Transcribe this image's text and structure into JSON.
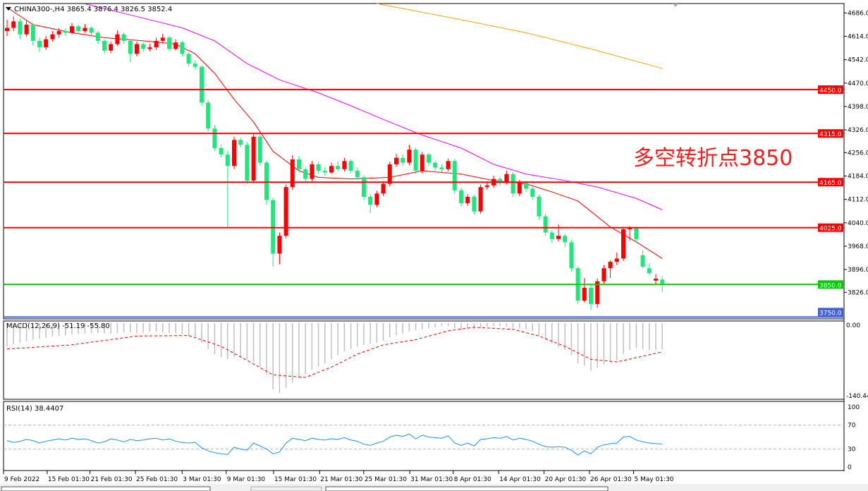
{
  "header": {
    "symbol_info": "CHINA300-,H4  3865.4 3876.4 3826.5 3852.4"
  },
  "annotation": "多空转折点3850",
  "colors": {
    "up_candle": "#ff0000",
    "down_candle": "#1ee87c",
    "ma_fast": "#ff0000",
    "ma_mid": "#ff00ff",
    "ma_slow": "#ffa500",
    "resistance": "#ff0000",
    "pivot": "#00cc00",
    "support": "#4060e0",
    "macd_hist": "#c0c0c0",
    "macd_signal": "#ff0000",
    "rsi": "#1e90ff"
  },
  "chart_data": [
    {
      "type": "candlestick",
      "ylim": [
        3750,
        4686
      ],
      "y_ticks": [
        "4686.0",
        "4614.0",
        "4542.0",
        "4470.0",
        "4398.0",
        "4326.0",
        "4256.0",
        "4184.0",
        "4112.0",
        "4040.0",
        "3968.0",
        "3896.0",
        "3826.0"
      ],
      "y_tick_values": [
        4686,
        4614,
        4542,
        4470,
        4398,
        4326,
        4256,
        4184,
        4112,
        4040,
        3968,
        3896,
        3826
      ],
      "x_ticks": [
        {
          "bar": 0,
          "label": "9 Feb 2022"
        },
        {
          "bar": 6.4,
          "label": "15 Feb 01:30"
        },
        {
          "bar": 13,
          "label": "21 Feb 01:30"
        },
        {
          "bar": 20,
          "label": "25 Feb 01:30"
        },
        {
          "bar": 27.2,
          "label": "3 Mar 01:30"
        },
        {
          "bar": 34,
          "label": "9 Mar 01:30"
        },
        {
          "bar": 41.3,
          "label": "15 Mar 01:30"
        },
        {
          "bar": 48.4,
          "label": "21 Mar 01:30"
        },
        {
          "bar": 55.2,
          "label": "25 Mar 01:30"
        },
        {
          "bar": 62.3,
          "label": "31 Mar 01:30"
        },
        {
          "bar": 69,
          "label": "8 Apr 01:30"
        },
        {
          "bar": 76,
          "label": "14 Apr 01:30"
        },
        {
          "bar": 83,
          "label": "20 Apr 01:30"
        },
        {
          "bar": 90,
          "label": "26 Apr 01:30"
        },
        {
          "bar": 96.8,
          "label": "5 May 01:30"
        }
      ],
      "candles_ohlc": [
        [
          4630,
          4665,
          4615,
          4640
        ],
        [
          4640,
          4675,
          4630,
          4660
        ],
        [
          4660,
          4668,
          4605,
          4620
        ],
        [
          4620,
          4662,
          4612,
          4650
        ],
        [
          4650,
          4655,
          4585,
          4600
        ],
        [
          4600,
          4610,
          4565,
          4580
        ],
        [
          4580,
          4615,
          4572,
          4605
        ],
        [
          4605,
          4630,
          4598,
          4620
        ],
        [
          4620,
          4640,
          4610,
          4630
        ],
        [
          4630,
          4638,
          4615,
          4625
        ],
        [
          4625,
          4655,
          4620,
          4645
        ],
        [
          4645,
          4650,
          4622,
          4630
        ],
        [
          4630,
          4652,
          4625,
          4640
        ],
        [
          4640,
          4645,
          4615,
          4625
        ],
        [
          4625,
          4630,
          4590,
          4600
        ],
        [
          4600,
          4605,
          4560,
          4570
        ],
        [
          4570,
          4598,
          4562,
          4590
        ],
        [
          4590,
          4632,
          4585,
          4620
        ],
        [
          4620,
          4626,
          4590,
          4600
        ],
        [
          4600,
          4605,
          4535,
          4560
        ],
        [
          4560,
          4598,
          4552,
          4590
        ],
        [
          4590,
          4596,
          4565,
          4575
        ],
        [
          4575,
          4590,
          4568,
          4580
        ],
        [
          4580,
          4610,
          4572,
          4600
        ],
        [
          4600,
          4622,
          4595,
          4610
        ],
        [
          4610,
          4615,
          4568,
          4575
        ],
        [
          4575,
          4605,
          4570,
          4595
        ],
        [
          4595,
          4600,
          4552,
          4560
        ],
        [
          4560,
          4565,
          4522,
          4530
        ],
        [
          4530,
          4540,
          4512,
          4520
        ],
        [
          4520,
          4525,
          4400,
          4410
        ],
        [
          4410,
          4418,
          4320,
          4330
        ],
        [
          4330,
          4340,
          4262,
          4270
        ],
        [
          4270,
          4282,
          4240,
          4250
        ],
        [
          4250,
          4262,
          4025,
          4215
        ],
        [
          4215,
          4305,
          4205,
          4295
        ],
        [
          4295,
          4302,
          4272,
          4280
        ],
        [
          4280,
          4288,
          4160,
          4170
        ],
        [
          4170,
          4315,
          4162,
          4305
        ],
        [
          4305,
          4312,
          4215,
          4225
        ],
        [
          4225,
          4232,
          4095,
          4110
        ],
        [
          4110,
          4118,
          3905,
          3945
        ],
        [
          3945,
          4010,
          3912,
          4000
        ],
        [
          4000,
          4158,
          3992,
          4150
        ],
        [
          4150,
          4248,
          4142,
          4235
        ],
        [
          4235,
          4245,
          4195,
          4205
        ],
        [
          4205,
          4212,
          4165,
          4175
        ],
        [
          4175,
          4230,
          4168,
          4220
        ],
        [
          4220,
          4228,
          4190,
          4200
        ],
        [
          4200,
          4212,
          4185,
          4195
        ],
        [
          4195,
          4225,
          4190,
          4215
        ],
        [
          4215,
          4228,
          4198,
          4205
        ],
        [
          4205,
          4240,
          4198,
          4230
        ],
        [
          4230,
          4235,
          4192,
          4200
        ],
        [
          4200,
          4210,
          4172,
          4180
        ],
        [
          4180,
          4186,
          4110,
          4120
        ],
        [
          4120,
          4128,
          4070,
          4095
        ],
        [
          4095,
          4138,
          4088,
          4130
        ],
        [
          4130,
          4168,
          4122,
          4160
        ],
        [
          4160,
          4228,
          4152,
          4220
        ],
        [
          4220,
          4252,
          4212,
          4240
        ],
        [
          4240,
          4250,
          4215,
          4225
        ],
        [
          4225,
          4280,
          4218,
          4265
        ],
        [
          4265,
          4272,
          4190,
          4200
        ],
        [
          4200,
          4258,
          4192,
          4250
        ],
        [
          4250,
          4256,
          4215,
          4225
        ],
        [
          4225,
          4232,
          4200,
          4210
        ],
        [
          4210,
          4220,
          4195,
          4205
        ],
        [
          4205,
          4238,
          4198,
          4230
        ],
        [
          4230,
          4236,
          4130,
          4140
        ],
        [
          4140,
          4148,
          4090,
          4100
        ],
        [
          4100,
          4128,
          4092,
          4120
        ],
        [
          4120,
          4126,
          4065,
          4075
        ],
        [
          4075,
          4158,
          4068,
          4150
        ],
        [
          4150,
          4165,
          4142,
          4155
        ],
        [
          4155,
          4185,
          4148,
          4175
        ],
        [
          4175,
          4182,
          4155,
          4165
        ],
        [
          4165,
          4200,
          4158,
          4190
        ],
        [
          4190,
          4196,
          4120,
          4130
        ],
        [
          4130,
          4172,
          4122,
          4165
        ],
        [
          4165,
          4170,
          4135,
          4145
        ],
        [
          4145,
          4152,
          4110,
          4120
        ],
        [
          4120,
          4126,
          4050,
          4060
        ],
        [
          4060,
          4068,
          4000,
          4010
        ],
        [
          4010,
          4018,
          3978,
          3990
        ],
        [
          3990,
          4035,
          3982,
          4000
        ],
        [
          4000,
          4006,
          3965,
          3980
        ],
        [
          3980,
          3988,
          3890,
          3900
        ],
        [
          3900,
          3906,
          3790,
          3800
        ],
        [
          3800,
          3870,
          3795,
          3840
        ],
        [
          3840,
          3848,
          3772,
          3790
        ],
        [
          3790,
          3868,
          3778,
          3860
        ],
        [
          3860,
          3910,
          3852,
          3900
        ],
        [
          3900,
          3925,
          3870,
          3920
        ],
        [
          3920,
          3948,
          3910,
          3930
        ],
        [
          3930,
          4028,
          3922,
          4020
        ],
        [
          4020,
          4030,
          3985,
          4025
        ],
        [
          4025,
          4028,
          3985,
          3990
        ],
        [
          3940,
          3955,
          3900,
          3905
        ],
        [
          3900,
          3915,
          3880,
          3885
        ],
        [
          3862,
          3882,
          3850,
          3868
        ],
        [
          3865.4,
          3876.4,
          3826.5,
          3852.4
        ]
      ],
      "moving_averages": [
        {
          "role": "fast",
          "points": [
            [
              0,
              4703
            ],
            [
              4,
              4650
            ],
            [
              10,
              4625
            ],
            [
              15,
              4610
            ],
            [
              21,
              4600
            ],
            [
              26,
              4590
            ],
            [
              29,
              4560
            ],
            [
              32,
              4500
            ],
            [
              35,
              4420
            ],
            [
              38,
              4350
            ],
            [
              41,
              4260
            ],
            [
              45,
              4200
            ],
            [
              48,
              4180
            ],
            [
              53,
              4175
            ],
            [
              59,
              4180
            ],
            [
              64,
              4200
            ],
            [
              70,
              4190
            ],
            [
              75,
              4170
            ],
            [
              80,
              4160
            ],
            [
              84,
              4135
            ],
            [
              88,
              4107
            ],
            [
              93,
              4027
            ],
            [
              97,
              3981
            ],
            [
              101,
              3930
            ]
          ]
        },
        {
          "role": "mid",
          "points": [
            [
              12,
              4714
            ],
            [
              21,
              4670
            ],
            [
              27,
              4640
            ],
            [
              32,
              4600
            ],
            [
              37,
              4530
            ],
            [
              42,
              4480
            ],
            [
              48,
              4440
            ],
            [
              53,
              4400
            ],
            [
              59,
              4350
            ],
            [
              64,
              4310
            ],
            [
              70,
              4270
            ],
            [
              75,
              4220
            ],
            [
              80,
              4190
            ],
            [
              86,
              4170
            ],
            [
              91,
              4150
            ],
            [
              97,
              4115
            ],
            [
              101,
              4080
            ]
          ]
        },
        {
          "role": "slow",
          "points": [
            [
              57,
              4715
            ],
            [
              70,
              4665
            ],
            [
              80,
              4625
            ],
            [
              91,
              4570
            ],
            [
              101,
              4515
            ]
          ]
        }
      ],
      "horizontal_lines": [
        {
          "value": 4450,
          "label": "4450.0",
          "kind": "resistance"
        },
        {
          "value": 4315,
          "label": "4315.0",
          "kind": "resistance"
        },
        {
          "value": 4165,
          "label": "4165.0",
          "kind": "resistance"
        },
        {
          "value": 4025,
          "label": "4025.0",
          "kind": "resistance"
        },
        {
          "value": 3850,
          "label": "3850.0",
          "kind": "pivot"
        },
        {
          "value": 3750,
          "label": "3750.0",
          "kind": "support"
        }
      ]
    },
    {
      "type": "bar",
      "title": "MACD(12,26,9) -51.19 -55.80",
      "ylim": [
        -140.44,
        0
      ],
      "y_ticks": [
        "0.00",
        "-140.44"
      ],
      "histogram": [
        -45,
        -40,
        -38,
        -35,
        -32,
        -30,
        -28,
        -26,
        -25,
        -24,
        -22,
        -21,
        -20,
        -20,
        -19,
        -20,
        -20,
        -19,
        -18,
        -18,
        -19,
        -18,
        -17,
        -17,
        -18,
        -19,
        -20,
        -22,
        -25,
        -28,
        -38,
        -50,
        -60,
        -66,
        -70,
        -66,
        -65,
        -70,
        -75,
        -85,
        -100,
        -128,
        -135,
        -125,
        -115,
        -105,
        -98,
        -90,
        -84,
        -78,
        -70,
        -62,
        -55,
        -50,
        -45,
        -42,
        -40,
        -38,
        -34,
        -28,
        -24,
        -20,
        -16,
        -14,
        -12,
        -10,
        -8,
        -6,
        -6,
        -10,
        -14,
        -12,
        -12,
        -8,
        -7,
        -6,
        -6,
        -7,
        -9,
        -10,
        -12,
        -16,
        -24,
        -32,
        -40,
        -46,
        -52,
        -62,
        -78,
        -82,
        -92,
        -86,
        -80,
        -76,
        -72,
        -60,
        -52,
        -48,
        -50,
        -52,
        -51,
        -51.19
      ],
      "signal": [
        [
          0,
          -50
        ],
        [
          10,
          -42
        ],
        [
          20,
          -25
        ],
        [
          28,
          -24
        ],
        [
          33,
          -45
        ],
        [
          37,
          -72
        ],
        [
          41,
          -100
        ],
        [
          46,
          -105
        ],
        [
          50,
          -85
        ],
        [
          54,
          -60
        ],
        [
          58,
          -42
        ],
        [
          63,
          -32
        ],
        [
          68,
          -15
        ],
        [
          72,
          -8
        ],
        [
          78,
          -12
        ],
        [
          82,
          -25
        ],
        [
          86,
          -45
        ],
        [
          90,
          -70
        ],
        [
          94,
          -75
        ],
        [
          101,
          -55.8
        ]
      ]
    },
    {
      "type": "line",
      "title": "RSI(14) 38.4407",
      "ylim": [
        0,
        100
      ],
      "y_ticks": [
        "100",
        "70",
        "30",
        "0"
      ],
      "levels": [
        70,
        30
      ],
      "values": [
        44,
        41,
        43,
        46,
        44,
        40,
        43,
        45,
        47,
        45,
        48,
        46,
        47,
        44,
        40,
        42,
        47,
        45,
        42,
        46,
        44,
        45,
        47,
        48,
        45,
        47,
        43,
        41,
        40,
        41,
        32,
        27,
        24,
        22,
        21,
        33,
        30,
        28,
        40,
        35,
        30,
        22,
        25,
        40,
        48,
        46,
        44,
        48,
        46,
        45,
        47,
        46,
        49,
        45,
        43,
        38,
        36,
        40,
        43,
        50,
        53,
        51,
        55,
        47,
        53,
        50,
        49,
        48,
        52,
        40,
        36,
        40,
        35,
        46,
        47,
        49,
        48,
        51,
        45,
        48,
        46,
        43,
        38,
        34,
        33,
        34,
        33,
        28,
        20,
        27,
        22,
        33,
        37,
        39,
        40,
        50,
        51,
        45,
        42,
        40,
        39,
        38.44
      ]
    }
  ]
}
